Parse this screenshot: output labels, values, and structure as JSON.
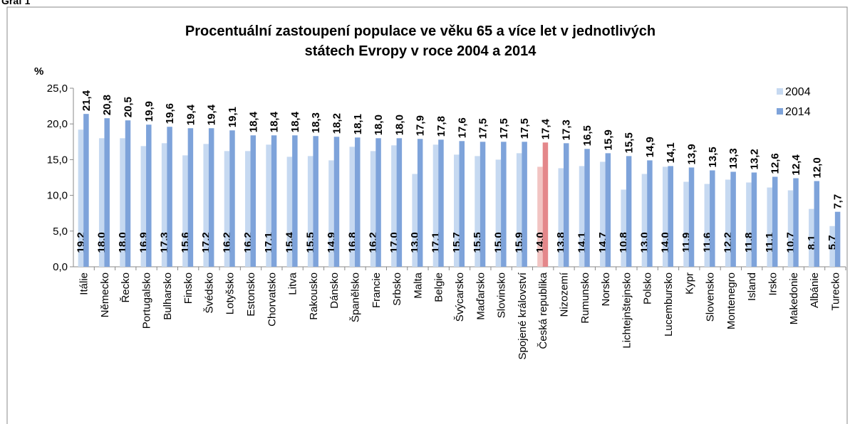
{
  "chart_data": {
    "type": "bar",
    "caption": "Graf 1",
    "title": [
      "Procentuální zastoupení populace ve věku 65 a více let v jednotlivých",
      "státech Evropy v roce 2004 a 2014"
    ],
    "y_label": "%",
    "categories": [
      "Itálie",
      "Německo",
      "Řecko",
      "Portugalsko",
      "Bulharsko",
      "Finsko",
      "Švédsko",
      "Lotyšsko",
      "Estonsko",
      "Chorvatsko",
      "Litva",
      "Rakousko",
      "Dánsko",
      "Španělsko",
      "Francie",
      "Srbsko",
      "Malta",
      "Belgie",
      "Švýcarsko",
      "Maďarsko",
      "Slovinsko",
      "Spojené království",
      "Česká republika",
      "Nizozemí",
      "Rumunsko",
      "Norsko",
      "Lichtejnštejnsko",
      "Polsko",
      "Lucembursko",
      "Kypr",
      "Slovensko",
      "Montenegro",
      "Island",
      "Irsko",
      "Makedonie",
      "Albánie",
      "Turecko"
    ],
    "series": [
      {
        "name": "2004",
        "color": "#c6d9f1",
        "highlight_color": "#f2c4c2",
        "values": [
          19.2,
          18.0,
          18.0,
          16.9,
          17.3,
          15.6,
          17.2,
          16.2,
          16.2,
          17.1,
          15.4,
          15.5,
          14.9,
          16.8,
          16.2,
          17.0,
          13.0,
          17.1,
          15.7,
          15.5,
          15.0,
          15.9,
          14.0,
          13.8,
          14.1,
          14.7,
          10.8,
          13.0,
          14.0,
          11.9,
          11.6,
          12.2,
          11.8,
          11.1,
          10.7,
          8.1,
          5.7
        ],
        "value_labels": [
          "19,2",
          "18,0",
          "18,0",
          "16,9",
          "17,3",
          "15,6",
          "17,2",
          "16,2",
          "16,2",
          "17,1",
          "15,4",
          "15,5",
          "14,9",
          "16,8",
          "16,2",
          "17,0",
          "13,0",
          "17,1",
          "15,7",
          "15,5",
          "15,0",
          "15,9",
          "14,0",
          "13,8",
          "14,1",
          "14,7",
          "10,8",
          "13,0",
          "14,0",
          "11,9",
          "11,6",
          "12,2",
          "11,8",
          "11,1",
          "10,7",
          "8,1",
          "5,7"
        ]
      },
      {
        "name": "2014",
        "color": "#7ea3da",
        "highlight_color": "#e4878a",
        "values": [
          21.4,
          20.8,
          20.5,
          19.9,
          19.6,
          19.4,
          19.4,
          19.1,
          18.4,
          18.4,
          18.4,
          18.3,
          18.2,
          18.1,
          18.0,
          18.0,
          17.9,
          17.8,
          17.6,
          17.5,
          17.5,
          17.5,
          17.4,
          17.3,
          16.5,
          15.9,
          15.5,
          14.9,
          14.1,
          13.9,
          13.5,
          13.3,
          13.2,
          12.6,
          12.4,
          12.0,
          7.7
        ],
        "value_labels": [
          "21,4",
          "20,8",
          "20,5",
          "19,9",
          "19,6",
          "19,4",
          "19,4",
          "19,1",
          "18,4",
          "18,4",
          "18,4",
          "18,3",
          "18,2",
          "18,1",
          "18,0",
          "18,0",
          "17,9",
          "17,8",
          "17,6",
          "17,5",
          "17,5",
          "17,5",
          "17,4",
          "17,3",
          "16,5",
          "15,9",
          "15,5",
          "14,9",
          "14,1",
          "13,9",
          "13,5",
          "13,3",
          "13,2",
          "12,6",
          "12,4",
          "12,0",
          "7,7"
        ]
      }
    ],
    "highlight_index": 22,
    "ylim": [
      0,
      25
    ],
    "yticks": [
      {
        "value": 0,
        "label": "0,0"
      },
      {
        "value": 5,
        "label": "5,0"
      },
      {
        "value": 10,
        "label": "10,0"
      },
      {
        "value": 15,
        "label": "15,0"
      },
      {
        "value": 20,
        "label": "20,0"
      },
      {
        "value": 25,
        "label": "25,0"
      }
    ],
    "grid": false,
    "legend": "upper right"
  }
}
